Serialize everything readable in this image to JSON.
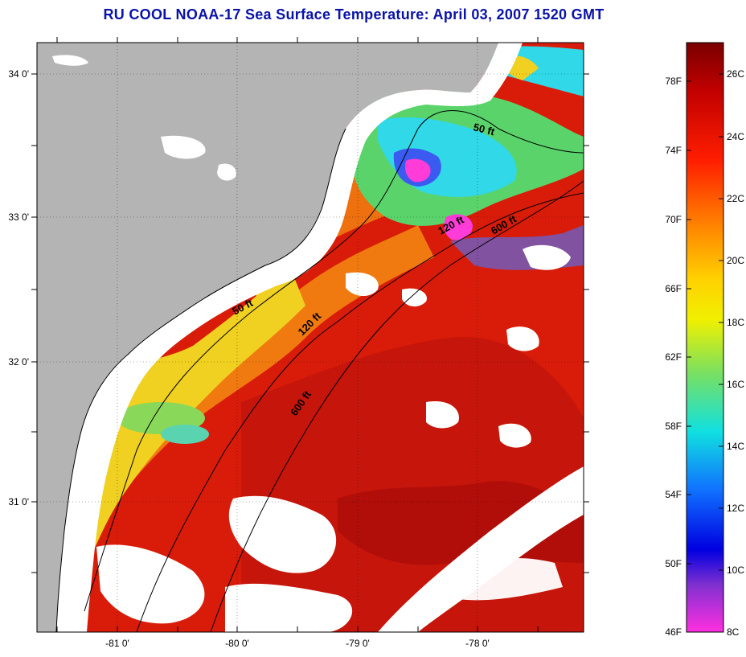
{
  "title": "RU COOL  NOAA-17  Sea Surface Temperature:  April 03, 2007 1520 GMT",
  "map": {
    "lon_labels": [
      "-81 0'",
      "-80 0'",
      "-79 0'",
      "-78 0'"
    ],
    "lat_labels": [
      "34 0'",
      "33 0'",
      "32 0'",
      "31 0'"
    ],
    "contours": [
      {
        "label": "50 ft"
      },
      {
        "label": "50 ft"
      },
      {
        "label": "120 ft"
      },
      {
        "label": "120 ft"
      },
      {
        "label": "600 ft"
      },
      {
        "label": "600 ft"
      }
    ]
  },
  "colorbar": {
    "fahrenheit_labels": [
      "78F",
      "74F",
      "70F",
      "66F",
      "62F",
      "58F",
      "54F",
      "50F",
      "46F"
    ],
    "celsius_labels": [
      "26C",
      "24C",
      "22C",
      "20C",
      "18C",
      "16C",
      "14C",
      "12C",
      "10C",
      "8C"
    ]
  },
  "colors": {
    "title": "#0a12a8",
    "land": "#b4b4b4",
    "no_data": "#ffffff",
    "warm": "#d91c0a",
    "hot": "#a00a0a",
    "mild": "#f07a10",
    "cool_yellow": "#f0d020",
    "cold_green": "#5ad46a",
    "cyan": "#30d8e8",
    "blue": "#3a5af0",
    "magenta": "#ff3cd8"
  }
}
